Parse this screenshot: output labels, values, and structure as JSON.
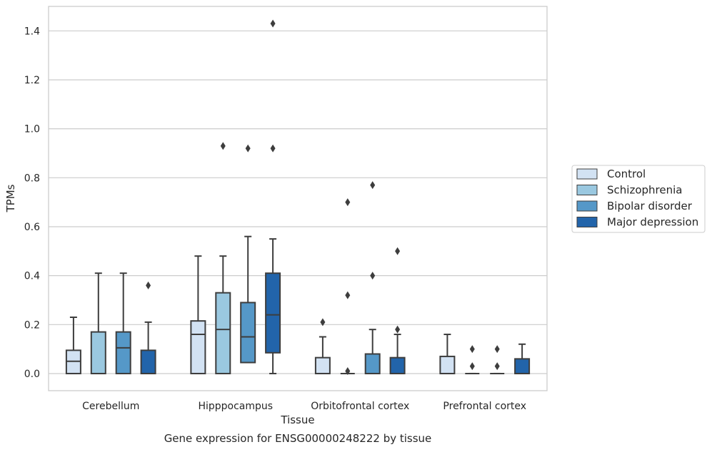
{
  "caption": "Gene expression for ENSG00000248222 by tissue",
  "chart_data": {
    "type": "box",
    "xlabel": "Tissue",
    "ylabel": "TPMs",
    "ylim": [
      -0.07,
      1.5
    ],
    "yticks": [
      0.0,
      0.2,
      0.4,
      0.6,
      0.8,
      1.0,
      1.2,
      1.4
    ],
    "grid": "horizontal",
    "legend_position": "right",
    "categories": [
      "Cerebellum",
      "Hipppocampus",
      "Orbitofrontal cortex",
      "Prefrontal cortex"
    ],
    "series": [
      {
        "name": "Control",
        "color": "#d2e2f3",
        "boxes": [
          {
            "whislo": 0.0,
            "q1": 0.0,
            "med": 0.05,
            "q3": 0.095,
            "whishi": 0.23,
            "fliers": []
          },
          {
            "whislo": 0.0,
            "q1": 0.0,
            "med": 0.16,
            "q3": 0.215,
            "whishi": 0.48,
            "fliers": []
          },
          {
            "whislo": 0.0,
            "q1": 0.0,
            "med": 0.0,
            "q3": 0.065,
            "whishi": 0.15,
            "fliers": [
              0.21
            ]
          },
          {
            "whislo": 0.0,
            "q1": 0.0,
            "med": 0.0,
            "q3": 0.07,
            "whishi": 0.16,
            "fliers": []
          }
        ]
      },
      {
        "name": "Schizophrenia",
        "color": "#9ac8e0",
        "boxes": [
          {
            "whislo": 0.0,
            "q1": 0.0,
            "med": 0.0,
            "q3": 0.17,
            "whishi": 0.41,
            "fliers": []
          },
          {
            "whislo": 0.0,
            "q1": 0.0,
            "med": 0.18,
            "q3": 0.33,
            "whishi": 0.48,
            "fliers": [
              0.93
            ]
          },
          {
            "whislo": 0.0,
            "q1": 0.0,
            "med": 0.0,
            "q3": 0.0,
            "whishi": 0.0,
            "fliers": [
              0.01,
              0.32,
              0.7
            ]
          },
          {
            "whislo": 0.0,
            "q1": 0.0,
            "med": 0.0,
            "q3": 0.0,
            "whishi": 0.0,
            "fliers": [
              0.03,
              0.1
            ]
          }
        ]
      },
      {
        "name": "Bipolar disorder",
        "color": "#5598c8",
        "boxes": [
          {
            "whislo": 0.0,
            "q1": 0.0,
            "med": 0.105,
            "q3": 0.17,
            "whishi": 0.41,
            "fliers": []
          },
          {
            "whislo": 0.045,
            "q1": 0.045,
            "med": 0.15,
            "q3": 0.29,
            "whishi": 0.56,
            "fliers": [
              0.92
            ]
          },
          {
            "whislo": 0.0,
            "q1": 0.0,
            "med": 0.0,
            "q3": 0.08,
            "whishi": 0.18,
            "fliers": [
              0.4,
              0.77
            ]
          },
          {
            "whislo": 0.0,
            "q1": 0.0,
            "med": 0.0,
            "q3": 0.0,
            "whishi": 0.0,
            "fliers": [
              0.03,
              0.1
            ]
          }
        ]
      },
      {
        "name": "Major depression",
        "color": "#2264aa",
        "boxes": [
          {
            "whislo": 0.0,
            "q1": 0.0,
            "med": 0.0,
            "q3": 0.095,
            "whishi": 0.21,
            "fliers": [
              0.36
            ]
          },
          {
            "whislo": 0.0,
            "q1": 0.085,
            "med": 0.24,
            "q3": 0.41,
            "whishi": 0.55,
            "fliers": [
              0.92,
              1.43
            ]
          },
          {
            "whislo": 0.0,
            "q1": 0.0,
            "med": 0.0,
            "q3": 0.065,
            "whishi": 0.16,
            "fliers": [
              0.18,
              0.5
            ]
          },
          {
            "whislo": 0.0,
            "q1": 0.0,
            "med": 0.0,
            "q3": 0.06,
            "whishi": 0.12,
            "fliers": []
          }
        ]
      }
    ]
  }
}
